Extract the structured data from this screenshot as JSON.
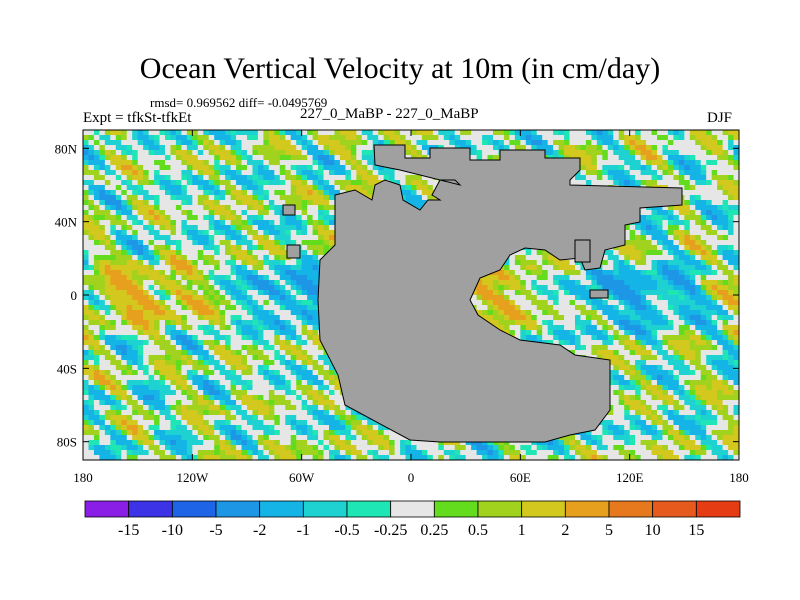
{
  "chart_data": {
    "type": "heatmap",
    "title": "Ocean Vertical Velocity at 10m (in cm/day)",
    "stats_text": "rmsd= 0.969562 diff= -0.0495769",
    "experiment_label": "Expt = tfkSt-tfkEt",
    "case_label": "227_0_MaBP - 227_0_MaBP",
    "season_label": "DJF",
    "x_range": [
      -180,
      180
    ],
    "y_range": [
      -90,
      90
    ],
    "x_ticks": [
      {
        "value": -180,
        "label": "180"
      },
      {
        "value": -120,
        "label": "120W"
      },
      {
        "value": -60,
        "label": "60W"
      },
      {
        "value": 0,
        "label": "0"
      },
      {
        "value": 60,
        "label": "60E"
      },
      {
        "value": 120,
        "label": "120E"
      },
      {
        "value": 180,
        "label": "180"
      }
    ],
    "y_ticks": [
      {
        "value": 80,
        "label": "80N"
      },
      {
        "value": 40,
        "label": "40N"
      },
      {
        "value": 0,
        "label": "0"
      },
      {
        "value": -40,
        "label": "40S"
      },
      {
        "value": -80,
        "label": "80S"
      }
    ],
    "colorbar": {
      "labels": [
        "-15",
        "-10",
        "-5",
        "-2",
        "-1",
        "-0.5",
        "-0.25",
        "0.25",
        "0.5",
        "1",
        "2",
        "5",
        "10",
        "15"
      ],
      "colors": [
        "#8a1ee6",
        "#3c32e6",
        "#1e64e6",
        "#1e96e6",
        "#14b4e6",
        "#1ed2d2",
        "#1ee6b4",
        "#e6e6e6",
        "#64dc1e",
        "#a0d21e",
        "#d2c81e",
        "#e6a01e",
        "#e6781e",
        "#e65a1e",
        "#e63c14"
      ]
    },
    "land_color": "#a0a0a0",
    "grid": false
  }
}
